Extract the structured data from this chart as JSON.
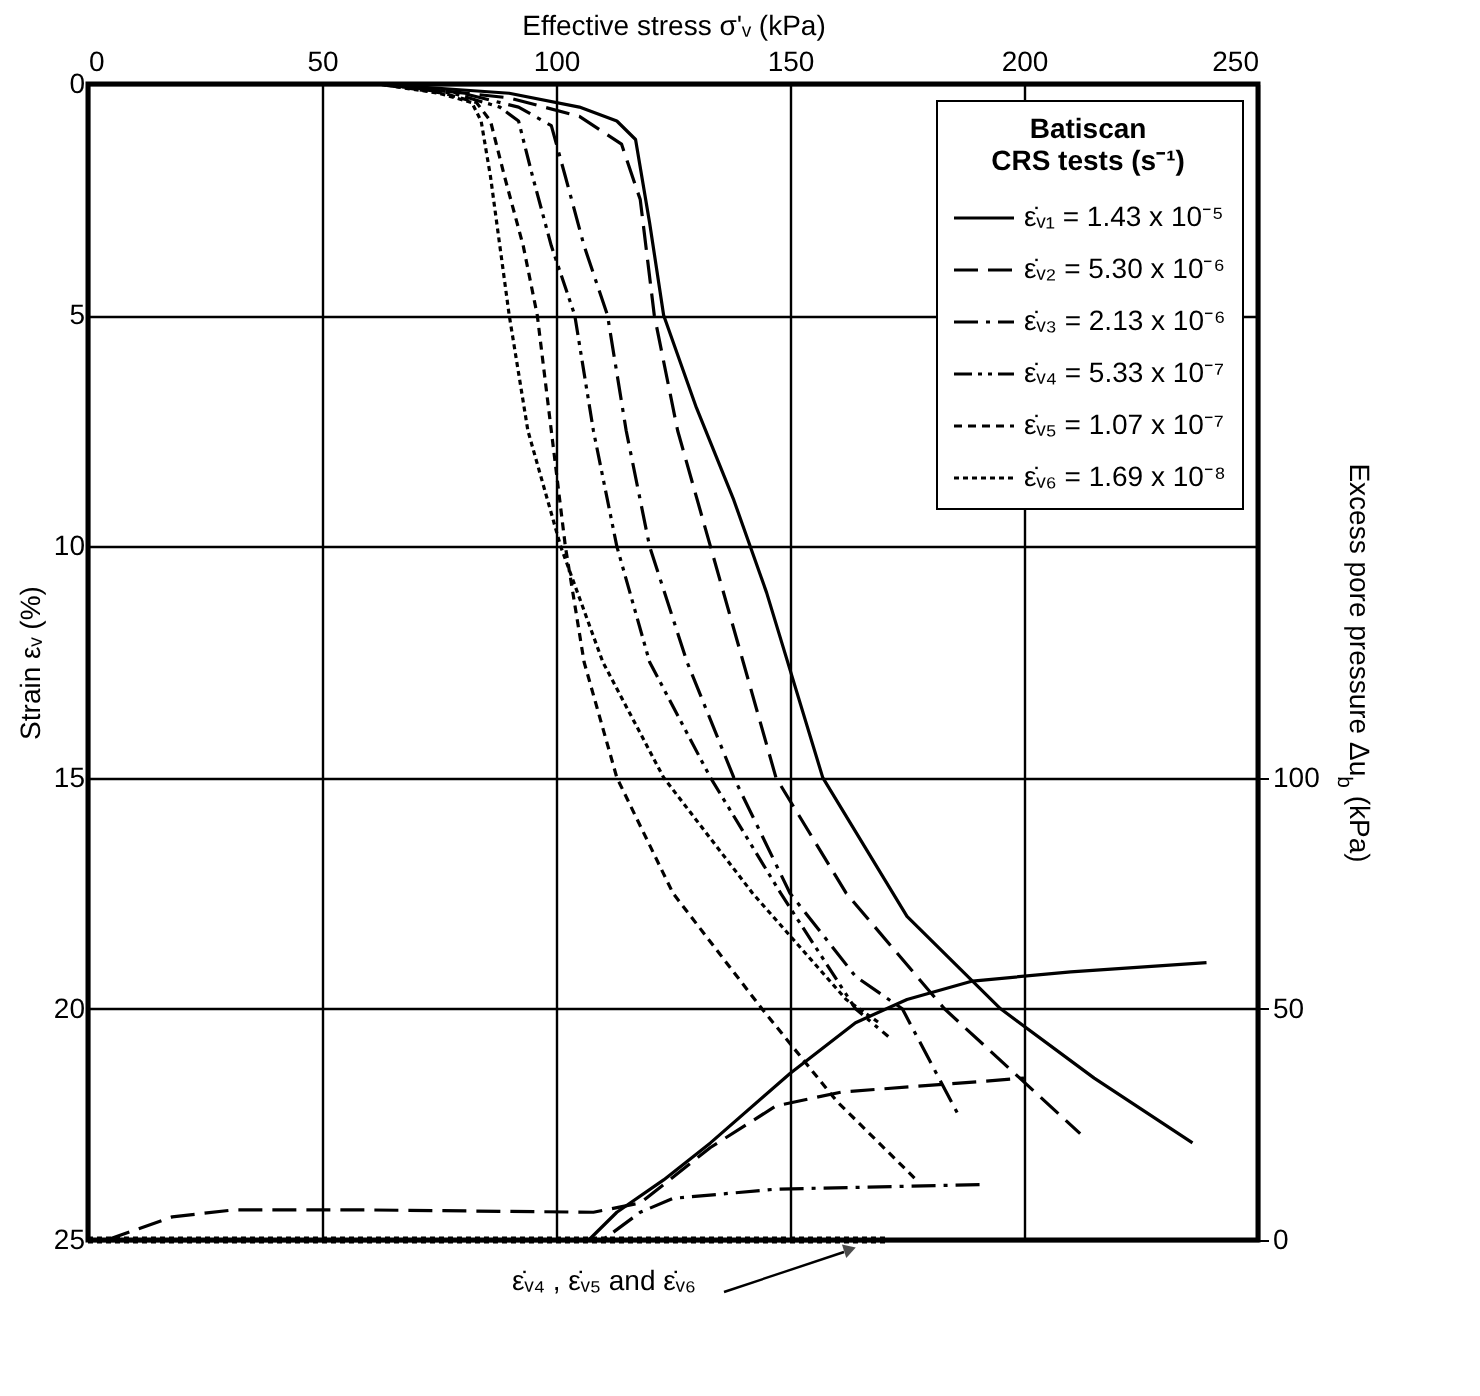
{
  "chart_data": {
    "type": "line",
    "xlabel": "Effective stress σ'ᵥ (kPa)",
    "ylabel": "Strain εᵥ (%)",
    "y2label": "Excess pore pressure Δu$_{b}$ (kPa)",
    "legend_title": "CRS tests (s⁻¹)",
    "annotations": [
      "Batiscan",
      "ε̇ᵥ₄ , ε̇ᵥ₅ and ε̇ᵥ₆"
    ],
    "xlim": [
      0,
      250
    ],
    "xticks": [
      0,
      50,
      100,
      150,
      200,
      250
    ],
    "ylim": [
      25,
      0
    ],
    "yticks": [
      0,
      5,
      10,
      15,
      20,
      25
    ],
    "y2lim": [
      0,
      250
    ],
    "y2ticks": [
      0,
      50,
      100
    ],
    "grid": true,
    "legend": "top right",
    "series": [
      {
        "name": "ε̇ᵥ₁ = 1.43 x 10⁻⁵",
        "color": "#000000",
        "line_style": "solid",
        "x": [
          62,
          90,
          105,
          113,
          117,
          120,
          123,
          130,
          138,
          145,
          157,
          175,
          195,
          215,
          236
        ],
        "values": [
          0,
          0.2,
          0.5,
          0.8,
          1.2,
          3,
          5,
          7,
          9,
          11,
          15,
          18,
          20,
          21.5,
          22.9
        ]
      },
      {
        "name": "ε̇ᵥ₂ = 5.30 x 10⁻⁶",
        "color": "#000000",
        "line_style": "dashed",
        "x": [
          62,
          90,
          105,
          114,
          118,
          121,
          126,
          133,
          140,
          147,
          162,
          183,
          212
        ],
        "values": [
          0,
          0.3,
          0.7,
          1.3,
          2.5,
          5,
          7.5,
          10,
          12.5,
          15,
          17.5,
          20,
          22.7
        ]
      },
      {
        "name": "ε̇ᵥ₃ = 2.13 x 10⁻⁶",
        "color": "#000000",
        "line_style": "dashdot",
        "x": [
          62,
          80,
          92,
          99,
          102,
          106,
          111,
          115,
          120,
          128,
          138,
          150,
          164,
          174,
          186
        ],
        "values": [
          0,
          0.2,
          0.5,
          0.9,
          2,
          3.5,
          5,
          7.5,
          10,
          12.5,
          15,
          17.5,
          19.3,
          20,
          22.3
        ]
      },
      {
        "name": "ε̇ᵥ₄ = 5.33 x 10⁻⁷",
        "color": "#000000",
        "line_style": "dashdotdot",
        "x": [
          62,
          78,
          88,
          92,
          95,
          99,
          104,
          108,
          113,
          120,
          133,
          148,
          164,
          171
        ],
        "values": [
          0,
          0.2,
          0.5,
          0.8,
          2,
          3.5,
          5,
          7.5,
          10,
          12.5,
          15,
          17.5,
          20,
          20.6
        ]
      },
      {
        "name": "ε̇ᵥ₅ = 1.07 x 10⁻⁷",
        "color": "#000000",
        "line_style": "shortdashed",
        "x": [
          62,
          76,
          83,
          86,
          89,
          93,
          96,
          99,
          102,
          106,
          113,
          125,
          144,
          160,
          177
        ],
        "values": [
          0,
          0.2,
          0.4,
          0.8,
          2,
          3.5,
          5,
          7.5,
          10,
          12.5,
          15,
          17.5,
          20,
          22,
          23.7
        ]
      },
      {
        "name": "ε̇ᵥ₆ = 1.69 x 10⁻⁸",
        "color": "#000000",
        "line_style": "dotted",
        "x": [
          62,
          75,
          82,
          84,
          86,
          88,
          90,
          94,
          101,
          110,
          123,
          142,
          162,
          169
        ],
        "values": [
          0,
          0.2,
          0.4,
          0.8,
          2,
          3.5,
          5,
          7.5,
          10,
          12.5,
          15,
          17.5,
          19.8,
          20.3
        ]
      },
      {
        "color": "#000000",
        "line_style": "solid",
        "axis": "y2",
        "x": [
          0,
          107,
          113,
          123,
          133,
          150,
          164,
          175,
          189,
          210,
          239
        ],
        "values": [
          0,
          0,
          6,
          13,
          21,
          36,
          47,
          52,
          56,
          58,
          60
        ]
      },
      {
        "color": "#000000",
        "line_style": "dashed",
        "axis": "y2",
        "x": [
          4,
          18,
          31,
          60,
          108,
          118,
          133,
          147,
          161,
          200
        ],
        "values": [
          0,
          5,
          6.5,
          6.5,
          6,
          8,
          20,
          29,
          32,
          35
        ]
      },
      {
        "color": "#000000",
        "line_style": "dashdot",
        "axis": "y2",
        "x": [
          0,
          110,
          118,
          125,
          147,
          192
        ],
        "values": [
          0,
          0,
          6,
          9,
          11,
          12
        ]
      },
      {
        "color": "#000000",
        "line_style": "dotted",
        "axis": "y2",
        "x": [
          0,
          171
        ],
        "values": [
          0,
          0
        ]
      }
    ]
  }
}
